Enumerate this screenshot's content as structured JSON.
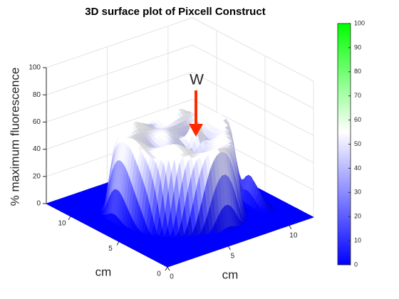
{
  "chart_data": {
    "type": "surface",
    "title": "3D surface plot of Pixcell Construct",
    "xlabel": "cm",
    "ylabel": "cm",
    "zlabel": "% maximum fluorescence",
    "annotation": "W",
    "xlim": [
      0,
      12
    ],
    "xticks": [
      0,
      5,
      10
    ],
    "ylim": [
      0,
      12.5
    ],
    "yticks": [
      0,
      5,
      10
    ],
    "zlim": [
      0,
      100
    ],
    "zticks": [
      0,
      20,
      40,
      60,
      80,
      100
    ],
    "colormap": [
      "#0000ff",
      "#ffffff",
      "#00ff00"
    ],
    "colorbar": {
      "lim": [
        0,
        100
      ],
      "ticks": [
        0,
        10,
        20,
        30,
        40,
        50,
        60,
        70,
        80,
        90,
        100
      ]
    },
    "grid": true
  }
}
